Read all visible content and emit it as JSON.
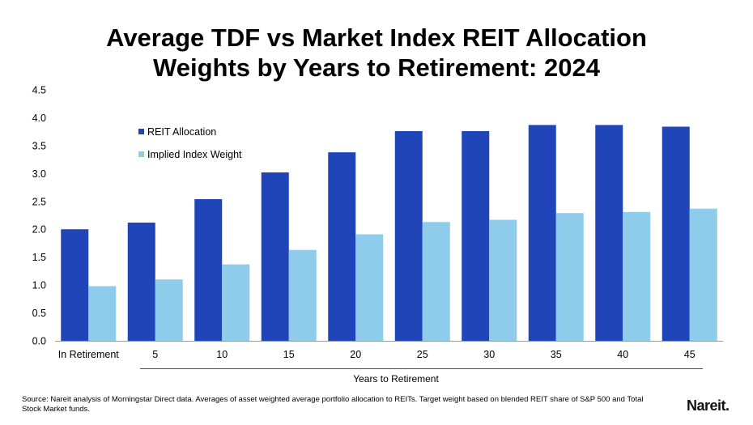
{
  "chart_data": {
    "type": "bar",
    "title_line1": "Average TDF vs Market Index REIT Allocation",
    "title_line2": "Weights by Years to Retirement: 2024",
    "categories": [
      "In Retirement",
      "5",
      "10",
      "15",
      "20",
      "25",
      "30",
      "35",
      "40",
      "45"
    ],
    "series": [
      {
        "name": "REIT Allocation",
        "color": "#1f45b8",
        "values": [
          2.0,
          2.12,
          2.54,
          3.02,
          3.38,
          3.76,
          3.76,
          3.87,
          3.87,
          3.84
        ]
      },
      {
        "name": "Implied Index Weight",
        "color": "#8fcbea",
        "values": [
          0.98,
          1.1,
          1.37,
          1.63,
          1.91,
          2.13,
          2.17,
          2.29,
          2.31,
          2.37
        ]
      }
    ],
    "xlabel": "Years to Retirement",
    "ylabel": "",
    "ylim": [
      0,
      4.5
    ],
    "yticks": [
      "0.0",
      "0.5",
      "1.0",
      "1.5",
      "2.0",
      "2.5",
      "3.0",
      "3.5",
      "4.0",
      "4.5"
    ],
    "legend_position": "top-left",
    "grid": false
  },
  "footer": {
    "source": "Source: Nareit analysis of Morningstar Direct data.  Averages of asset weighted average portfolio allocation to REITs. Target weight based on blended REIT share of S&P 500 and Total Stock Market funds.",
    "logo": "Nareit."
  }
}
